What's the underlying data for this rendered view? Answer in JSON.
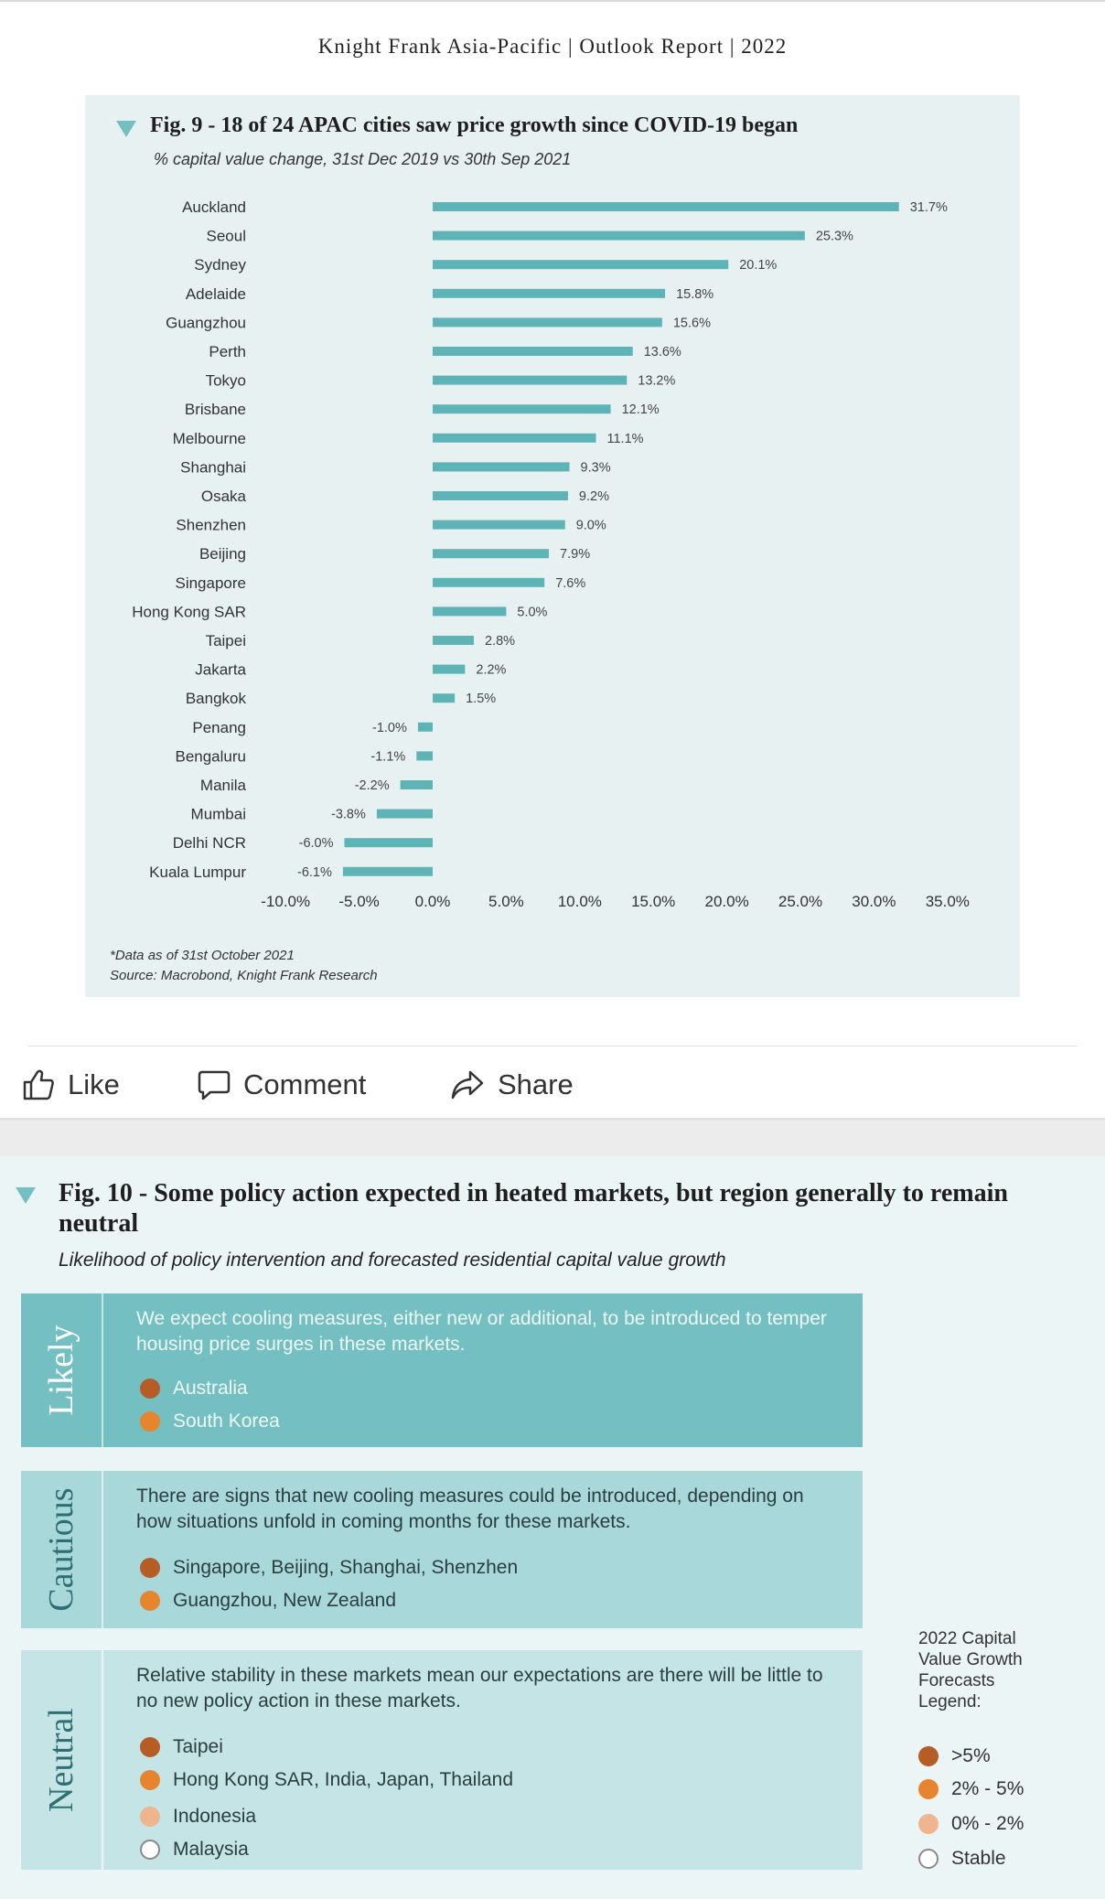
{
  "report_header": "Knight Frank Asia-Pacific | Outlook Report | 2022",
  "chart_data": {
    "type": "bar",
    "orientation": "horizontal",
    "title": "Fig. 9 - 18 of 24 APAC cities saw price growth since COVID-19 began",
    "subtitle": "% capital value change, 31st Dec 2019 vs 30th Sep 2021",
    "categories": [
      "Auckland",
      "Seoul",
      "Sydney",
      "Adelaide",
      "Guangzhou",
      "Perth",
      "Tokyo",
      "Brisbane",
      "Melbourne",
      "Shanghai",
      "Osaka",
      "Shenzhen",
      "Beijing",
      "Singapore",
      "Hong Kong SAR",
      "Taipei",
      "Jakarta",
      "Bangkok",
      "Penang",
      "Bengaluru",
      "Manila",
      "Mumbai",
      "Delhi NCR",
      "Kuala Lumpur"
    ],
    "values": [
      31.7,
      25.3,
      20.1,
      15.8,
      15.6,
      13.6,
      13.2,
      12.1,
      11.1,
      9.3,
      9.2,
      9.0,
      7.9,
      7.6,
      5.0,
      2.8,
      2.2,
      1.5,
      -1.0,
      -1.1,
      -2.2,
      -3.8,
      -6.0,
      -6.1
    ],
    "data_labels": [
      "31.7%",
      "25.3%",
      "20.1%",
      "15.8%",
      "15.6%",
      "13.6%",
      "13.2%",
      "12.1%",
      "11.1%",
      "9.3%",
      "9.2%",
      "9.0%",
      "7.9%",
      "7.6%",
      "5.0%",
      "2.8%",
      "2.2%",
      "1.5%",
      "-1.0%",
      "-1.1%",
      "-2.2%",
      "-3.8%",
      "-6.0%",
      "-6.1%"
    ],
    "xlim": [
      -10,
      35
    ],
    "x_ticks": [
      -10,
      -5,
      0,
      5,
      10,
      15,
      20,
      25,
      30,
      35
    ],
    "x_tick_labels": [
      "-10.0%",
      "-5.0%",
      "0.0%",
      "5.0%",
      "10.0%",
      "15.0%",
      "20.0%",
      "25.0%",
      "30.0%",
      "35.0%"
    ],
    "bar_color": "#5eb3b6",
    "note": "*Data as of 31st October 2021",
    "source": "Source: Macrobond, Knight Frank Research"
  },
  "actions": {
    "like": "Like",
    "comment": "Comment",
    "share": "Share"
  },
  "fig10": {
    "title": "Fig. 10 - Some policy action expected in heated markets, but region generally to remain neutral",
    "subtitle": "Likelihood of policy intervention and forecasted residential capital value growth",
    "likely": {
      "label": "Likely",
      "desc": "We expect cooling measures, either new or additional, to be introduced to temper housing price surges in these markets.",
      "items": [
        "Australia",
        "South Korea"
      ]
    },
    "cautious": {
      "label": "Cautious",
      "desc": "There are signs that new cooling measures could be introduced, depending on how situations unfold in coming months for these markets.",
      "items": [
        "Singapore, Beijing, Shanghai, Shenzhen",
        "Guangzhou, New Zealand"
      ]
    },
    "neutral": {
      "label": "Neutral",
      "desc": "Relative stability in these markets mean our expectations are there will be little to no new policy action in these markets.",
      "items": [
        "Taipei",
        "Hong Kong SAR, India, Japan, Thailand",
        "Indonesia",
        "Malaysia"
      ]
    },
    "legend": {
      "title": "2022 Capital Value Growth Forecasts Legend:",
      "items": [
        ">5%",
        "2% - 5%",
        "0% - 2%",
        "Stable"
      ]
    },
    "colors": {
      "gt5": "#b65c25",
      "2to5": "#e6852e",
      "0to2": "#f0b48e",
      "stable": "#ffffff"
    }
  }
}
